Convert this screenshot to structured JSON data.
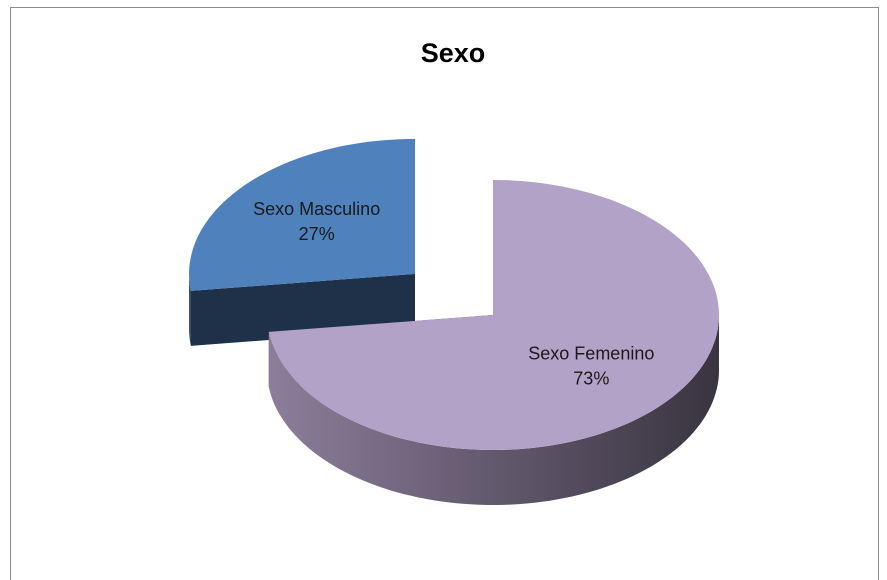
{
  "chart_data": {
    "type": "pie",
    "title": "Sexo",
    "categories": [
      "Sexo Masculino",
      "Sexo Femenino"
    ],
    "values": [
      27,
      73
    ],
    "value_labels": [
      "27%",
      "73%"
    ],
    "colors": [
      "#4f81bd",
      "#b3a2c7"
    ]
  }
}
